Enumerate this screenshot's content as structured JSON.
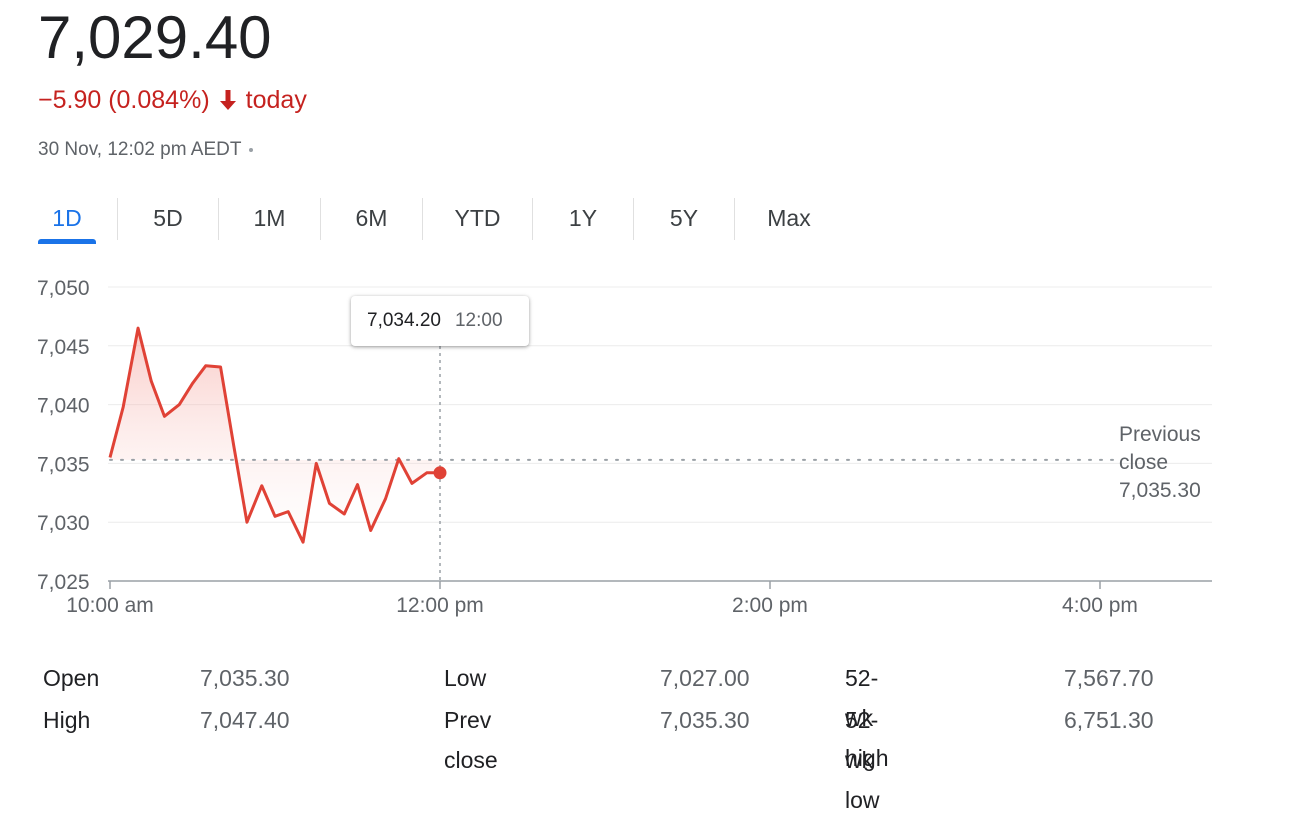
{
  "quote": {
    "price": "7,029.40",
    "change": "−5.90 (0.084%)",
    "change_suffix": "today",
    "timestamp": "30 Nov, 12:02 pm AEDT"
  },
  "colors": {
    "negative": "#c5221f",
    "accent": "#1a73e8",
    "line": "#e04236"
  },
  "tabs": [
    {
      "label": "1D",
      "active": true
    },
    {
      "label": "5D"
    },
    {
      "label": "1M"
    },
    {
      "label": "6M"
    },
    {
      "label": "YTD"
    },
    {
      "label": "1Y"
    },
    {
      "label": "5Y"
    },
    {
      "label": "Max"
    }
  ],
  "tooltip": {
    "value": "7,034.20",
    "time": "12:00"
  },
  "prev_close": {
    "line1": "Previous",
    "line2": "close",
    "value": "7,035.30"
  },
  "chart_data": {
    "type": "line",
    "ylim": [
      7025,
      7050
    ],
    "yticks": [
      7050,
      7045,
      7040,
      7035,
      7030,
      7025
    ],
    "ytick_labels": [
      "7,050",
      "7,045",
      "7,040",
      "7,035",
      "7,030",
      "7,025"
    ],
    "xlim": [
      10.0,
      16.65
    ],
    "xticks": [
      10.0,
      12.0,
      14.0,
      16.0
    ],
    "xtick_labels": [
      "10:00 am",
      "12:00 pm",
      "2:00 pm",
      "4:00 pm"
    ],
    "previous_close": 7035.3,
    "series": [
      {
        "x": [
          10.0,
          10.08,
          10.17,
          10.25,
          10.33,
          10.42,
          10.5,
          10.58,
          10.67,
          10.75,
          10.83,
          10.92,
          11.0,
          11.08,
          11.17,
          11.25,
          11.33,
          11.42,
          11.5,
          11.58,
          11.67,
          11.75,
          11.83,
          11.92,
          12.0
        ],
        "y": [
          7035.5,
          7039.8,
          7046.5,
          7042.0,
          7039.0,
          7040.0,
          7041.8,
          7043.3,
          7043.2,
          7036.5,
          7030.0,
          7033.1,
          7030.5,
          7030.9,
          7028.3,
          7035.0,
          7031.6,
          7030.7,
          7033.2,
          7029.3,
          7032.0,
          7035.4,
          7033.3,
          7034.2,
          7034.2
        ]
      }
    ]
  },
  "stats": [
    {
      "label": "Open",
      "value": "7,035.30"
    },
    {
      "label": "High",
      "value": "7,047.40"
    },
    {
      "label": "Low",
      "value": "7,027.00"
    },
    {
      "label": "Prev close",
      "value": "7,035.30"
    },
    {
      "label": "52-wk high",
      "value": "7,567.70"
    },
    {
      "label": "52-wk low",
      "value": "6,751.30"
    }
  ]
}
